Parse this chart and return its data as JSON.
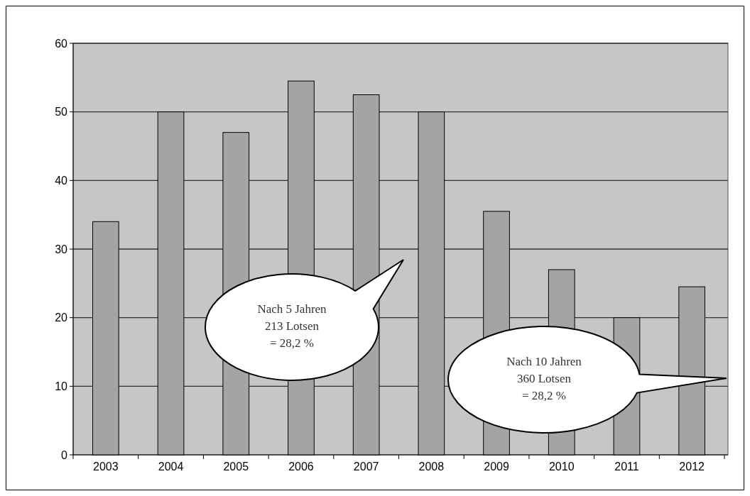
{
  "chart_data": {
    "type": "bar",
    "categories": [
      "2003",
      "2004",
      "2005",
      "2006",
      "2007",
      "2008",
      "2009",
      "2010",
      "2011",
      "2012"
    ],
    "values": [
      34,
      50,
      47,
      54.5,
      52.5,
      50,
      35.5,
      27,
      20,
      24.5
    ],
    "color": "#a4a4a4",
    "ylim": [
      0,
      60
    ],
    "yticks": [
      0,
      10,
      20,
      30,
      40,
      50,
      60
    ],
    "grid": "y",
    "annotations": [
      "Nach 5 Jahren\n213 Lotsen\n= 28,2  %",
      "Nach 10 Jahren\n360 Lotsen\n= 28,2  %"
    ]
  }
}
